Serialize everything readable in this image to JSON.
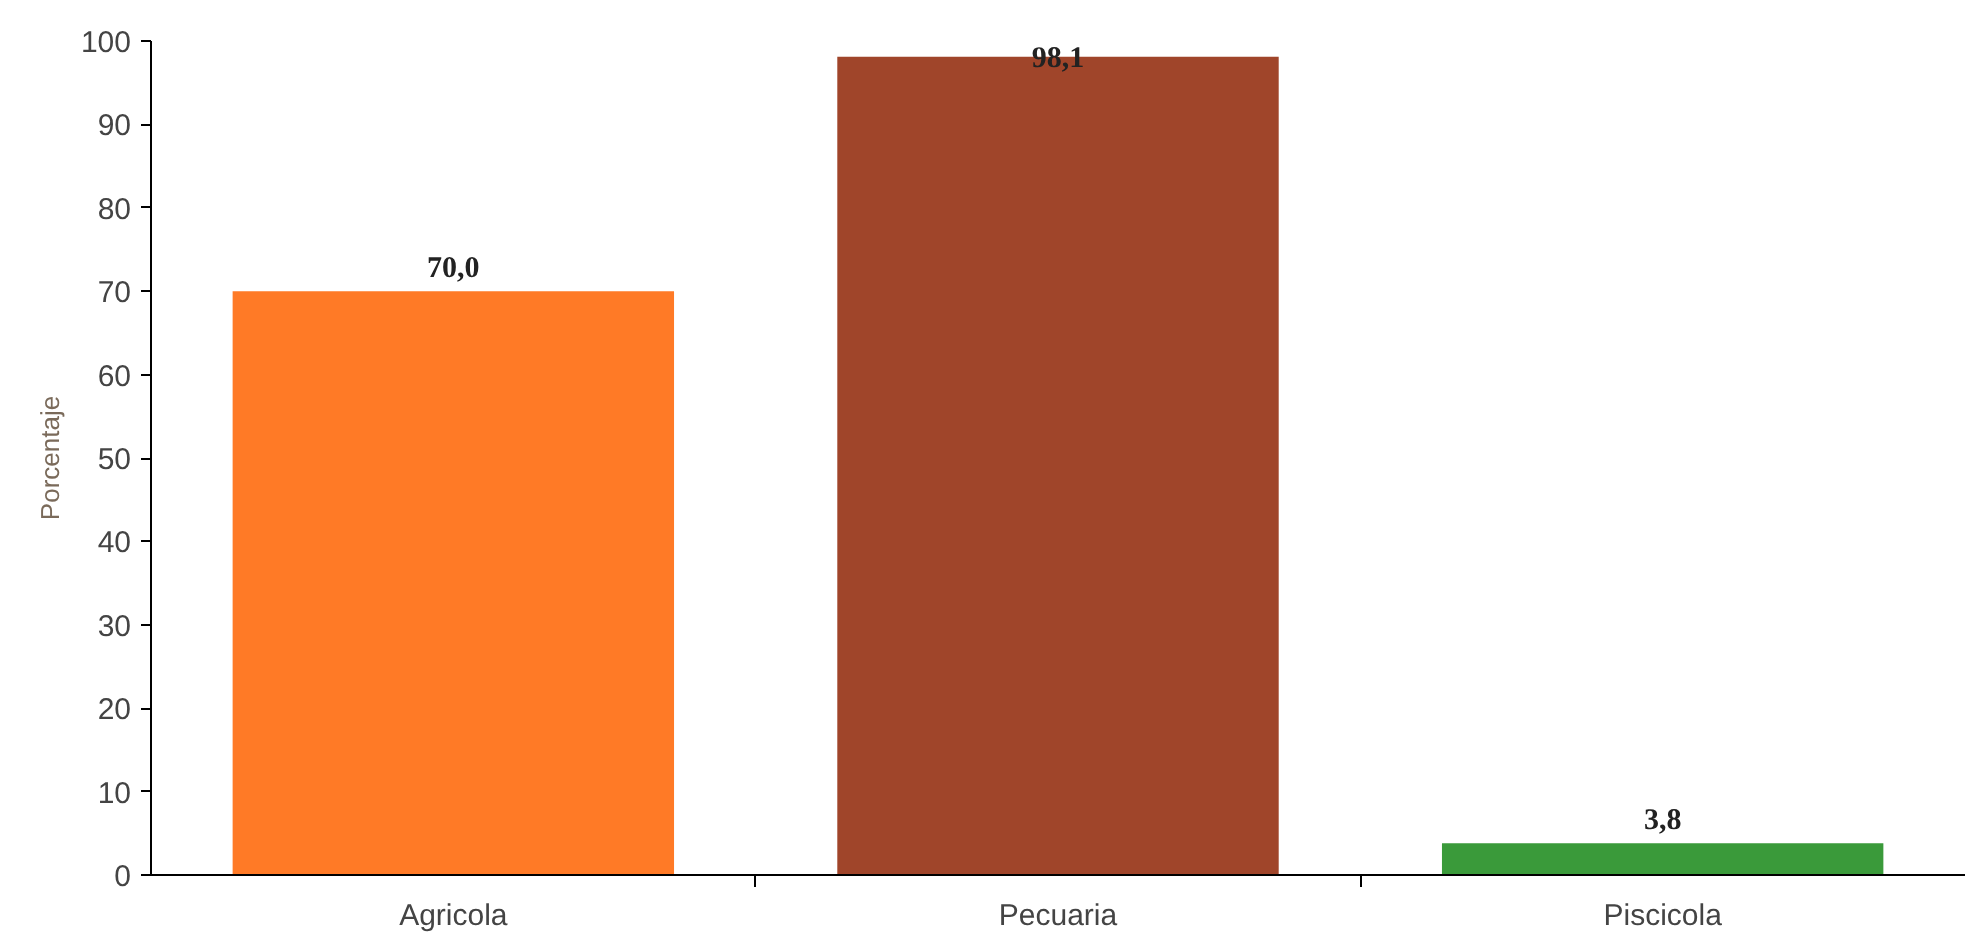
{
  "chart_data": {
    "type": "bar",
    "ylabel": "Porcentaje",
    "categories": [
      "Agricola",
      "Pecuaria",
      "Piscicola"
    ],
    "values": [
      70.0,
      98.1,
      3.8
    ],
    "colors": [
      "#ff7a26",
      "#a0452a",
      "#3a9a3a"
    ],
    "value_labels": [
      "70,0",
      "98,1",
      "3,8"
    ],
    "ylim": [
      0,
      100
    ],
    "yticks": [
      0,
      10,
      20,
      30,
      40,
      50,
      60,
      70,
      80,
      90,
      100
    ],
    "grid": false
  }
}
